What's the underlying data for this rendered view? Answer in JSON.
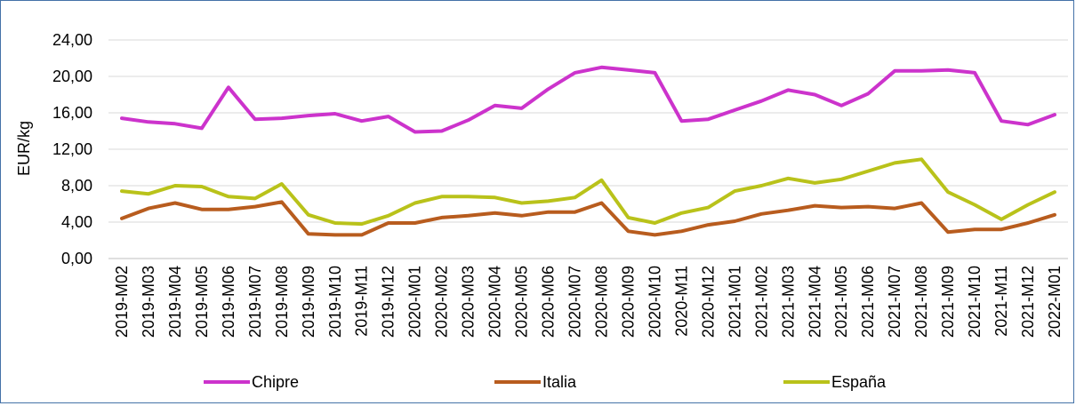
{
  "chart_data": {
    "type": "line",
    "title": "",
    "xlabel": "",
    "ylabel": "EUR/kg",
    "ylim": [
      0,
      24
    ],
    "yticks": [
      "0,00",
      "4,00",
      "8,00",
      "12,00",
      "16,00",
      "20,00",
      "24,00"
    ],
    "grid": true,
    "legend_position": "bottom",
    "categories": [
      "2019-M02",
      "2019-M03",
      "2019-M04",
      "2019-M05",
      "2019-M06",
      "2019-M07",
      "2019-M08",
      "2019-M09",
      "2019-M10",
      "2019-M11",
      "2019-M12",
      "2020-M01",
      "2020-M02",
      "2020-M03",
      "2020-M04",
      "2020-M05",
      "2020-M06",
      "2020-M07",
      "2020-M08",
      "2020-M09",
      "2020-M10",
      "2020-M11",
      "2020-M12",
      "2021-M01",
      "2021-M02",
      "2021-M03",
      "2021-M04",
      "2021-M05",
      "2021-M06",
      "2021-M07",
      "2021-M08",
      "2021-M09",
      "2021-M10",
      "2021-M11",
      "2021-M12",
      "2022-M01"
    ],
    "series": [
      {
        "name": "Chipre",
        "color": "#cc33cc",
        "values": [
          15.4,
          15.0,
          14.8,
          14.3,
          18.8,
          15.3,
          15.4,
          15.7,
          15.9,
          15.1,
          15.6,
          13.9,
          14.0,
          15.2,
          16.8,
          16.5,
          18.6,
          20.4,
          21.0,
          20.7,
          20.4,
          15.1,
          15.3,
          16.3,
          17.3,
          18.5,
          18.0,
          16.8,
          18.1,
          20.6,
          20.6,
          20.7,
          20.4,
          15.1,
          14.7,
          15.8
        ]
      },
      {
        "name": "Italia",
        "color": "#b85c1e",
        "values": [
          4.4,
          5.5,
          6.1,
          5.4,
          5.4,
          5.7,
          6.2,
          2.7,
          2.6,
          2.6,
          3.9,
          3.9,
          4.5,
          4.7,
          5.0,
          4.7,
          5.1,
          5.1,
          6.1,
          3.0,
          2.6,
          3.0,
          3.7,
          4.1,
          4.9,
          5.3,
          5.8,
          5.6,
          5.7,
          5.5,
          6.1,
          2.9,
          3.2,
          3.2,
          3.9,
          4.8
        ]
      },
      {
        "name": "España",
        "color": "#b9c21a",
        "values": [
          7.4,
          7.1,
          8.0,
          7.9,
          6.8,
          6.6,
          8.2,
          4.8,
          3.9,
          3.8,
          4.7,
          6.1,
          6.8,
          6.8,
          6.7,
          6.1,
          6.3,
          6.7,
          8.6,
          4.5,
          3.9,
          5.0,
          5.6,
          7.4,
          8.0,
          8.8,
          8.3,
          8.7,
          9.6,
          10.5,
          10.9,
          7.3,
          5.9,
          4.3,
          5.9,
          7.3
        ]
      }
    ]
  }
}
